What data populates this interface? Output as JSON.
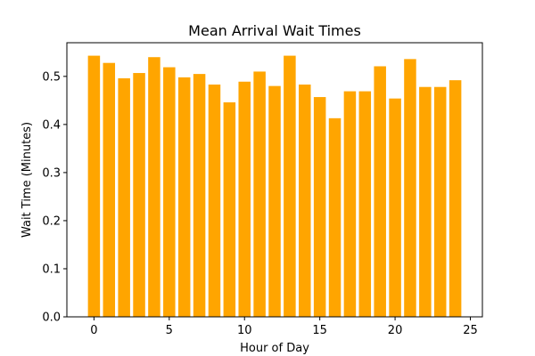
{
  "chart_data": {
    "type": "bar",
    "title": "Mean Arrival Wait Times",
    "xlabel": "Hour of Day",
    "ylabel": "Wait Time (Minutes)",
    "x": [
      0,
      1,
      2,
      3,
      4,
      5,
      6,
      7,
      8,
      9,
      10,
      11,
      12,
      13,
      14,
      15,
      16,
      17,
      18,
      19,
      20,
      21,
      22,
      23,
      24
    ],
    "values": [
      0.543,
      0.528,
      0.496,
      0.507,
      0.54,
      0.519,
      0.498,
      0.505,
      0.483,
      0.446,
      0.489,
      0.51,
      0.48,
      0.543,
      0.483,
      0.457,
      0.413,
      0.469,
      0.469,
      0.521,
      0.454,
      0.536,
      0.478,
      0.478,
      0.492
    ],
    "xlim": [
      -1.8,
      25.8
    ],
    "ylim": [
      0,
      0.57
    ],
    "xticks": [
      0,
      5,
      10,
      15,
      20,
      25
    ],
    "yticks": [
      0.0,
      0.1,
      0.2,
      0.3,
      0.4,
      0.5
    ],
    "bar_color": "#FFA500",
    "grid": false
  }
}
